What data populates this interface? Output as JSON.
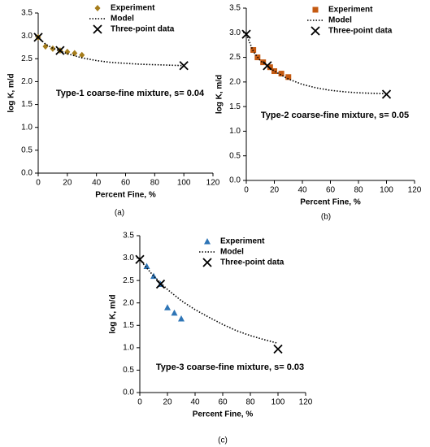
{
  "chart_data": [
    {
      "type": "line",
      "caption": "(a)",
      "annotation": "Type-1 coarse-fine mixture, s= 0.04",
      "x_label": "Percent Fine, %",
      "y_label": "log K, m/d",
      "xlim": [
        0,
        120
      ],
      "xticks": [
        0,
        20,
        40,
        60,
        80,
        100,
        120
      ],
      "ylim": [
        0,
        3.5
      ],
      "yticks": [
        {
          "value": 0,
          "label": "0.0"
        },
        {
          "value": 0.5,
          "label": "0.5"
        },
        {
          "value": 1,
          "label": "1.0"
        },
        {
          "value": 1.5,
          "label": "1.5"
        },
        {
          "value": 2,
          "label": "2.0"
        },
        {
          "value": 2.5,
          "label": "2.5"
        },
        {
          "value": 3,
          "label": "3.0"
        },
        {
          "value": 3.5,
          "label": "3.5"
        }
      ],
      "series": [
        {
          "name": "Experiment",
          "marker": "diamond",
          "color": "#a57c1b",
          "x": [
            0,
            5,
            10,
            15,
            20,
            25,
            30
          ],
          "values": [
            2.97,
            2.77,
            2.72,
            2.68,
            2.65,
            2.62,
            2.58
          ]
        },
        {
          "name": "Model",
          "marker": "dotted-line",
          "color": "#000000",
          "x": [
            0,
            5,
            10,
            15,
            20,
            30,
            40,
            50,
            60,
            70,
            80,
            90,
            100
          ],
          "values": [
            2.97,
            2.82,
            2.73,
            2.67,
            2.61,
            2.52,
            2.46,
            2.42,
            2.4,
            2.38,
            2.37,
            2.36,
            2.35
          ]
        },
        {
          "name": "Three-point data",
          "marker": "x",
          "color": "#000000",
          "x": [
            0,
            15,
            100
          ],
          "values": [
            2.97,
            2.68,
            2.35
          ]
        }
      ]
    },
    {
      "type": "line",
      "caption": "(b)",
      "annotation": "Type-2 coarse-fine mixture, s= 0.05",
      "x_label": "Percent Fine, %",
      "y_label": "log K, m/d",
      "xlim": [
        0,
        120
      ],
      "xticks": [
        0,
        20,
        40,
        60,
        80,
        100,
        120
      ],
      "ylim": [
        0,
        3.5
      ],
      "yticks": [
        {
          "value": 0,
          "label": "0.0"
        },
        {
          "value": 0.5,
          "label": "0.5"
        },
        {
          "value": 1,
          "label": "1.0"
        },
        {
          "value": 1.5,
          "label": "1.5"
        },
        {
          "value": 2,
          "label": "2.0"
        },
        {
          "value": 2.5,
          "label": "2.5"
        },
        {
          "value": 3,
          "label": "3.0"
        },
        {
          "value": 3.5,
          "label": "3.5"
        }
      ],
      "series": [
        {
          "name": "Experiment",
          "marker": "square",
          "color": "#c55a11",
          "x": [
            5,
            8,
            12,
            17,
            20,
            25,
            30
          ],
          "values": [
            2.65,
            2.5,
            2.4,
            2.3,
            2.22,
            2.17,
            2.1
          ]
        },
        {
          "name": "Model",
          "marker": "dotted-line",
          "color": "#000000",
          "x": [
            0,
            5,
            10,
            15,
            20,
            30,
            40,
            50,
            60,
            70,
            80,
            90,
            100
          ],
          "values": [
            2.97,
            2.62,
            2.43,
            2.33,
            2.22,
            2.06,
            1.95,
            1.88,
            1.83,
            1.8,
            1.78,
            1.77,
            1.76
          ]
        },
        {
          "name": "Three-point data",
          "marker": "x",
          "color": "#000000",
          "x": [
            0,
            15,
            100
          ],
          "values": [
            2.97,
            2.33,
            1.75
          ]
        }
      ]
    },
    {
      "type": "line",
      "caption": "(c)",
      "annotation": "Type-3 coarse-fine mixture, s= 0.03",
      "x_label": "Percent Fine, %",
      "y_label": "log K, m/d",
      "xlim": [
        0,
        120
      ],
      "xticks": [
        0,
        20,
        40,
        60,
        80,
        100,
        120
      ],
      "ylim": [
        0,
        3.5
      ],
      "yticks": [
        {
          "value": 0,
          "label": "0.0"
        },
        {
          "value": 0.5,
          "label": "0.5"
        },
        {
          "value": 1,
          "label": "1.0"
        },
        {
          "value": 1.5,
          "label": "1.5"
        },
        {
          "value": 2,
          "label": "2.0"
        },
        {
          "value": 2.5,
          "label": "2.5"
        },
        {
          "value": 3,
          "label": "3.0"
        },
        {
          "value": 3.5,
          "label": "3.5"
        }
      ],
      "series": [
        {
          "name": "Experiment",
          "marker": "triangle",
          "color": "#2e75b6",
          "x": [
            5,
            10,
            15,
            20,
            25,
            30
          ],
          "values": [
            2.82,
            2.6,
            2.42,
            1.9,
            1.78,
            1.65
          ]
        },
        {
          "name": "Model",
          "marker": "dotted-line",
          "color": "#000000",
          "x": [
            0,
            5,
            10,
            15,
            20,
            30,
            40,
            50,
            60,
            70,
            80,
            90,
            100
          ],
          "values": [
            2.97,
            2.78,
            2.6,
            2.45,
            2.3,
            2.05,
            1.85,
            1.68,
            1.52,
            1.38,
            1.27,
            1.18,
            1.1
          ]
        },
        {
          "name": "Three-point data",
          "marker": "x",
          "color": "#000000",
          "x": [
            0,
            15,
            100
          ],
          "values": [
            2.97,
            2.42,
            0.97
          ]
        }
      ]
    }
  ]
}
